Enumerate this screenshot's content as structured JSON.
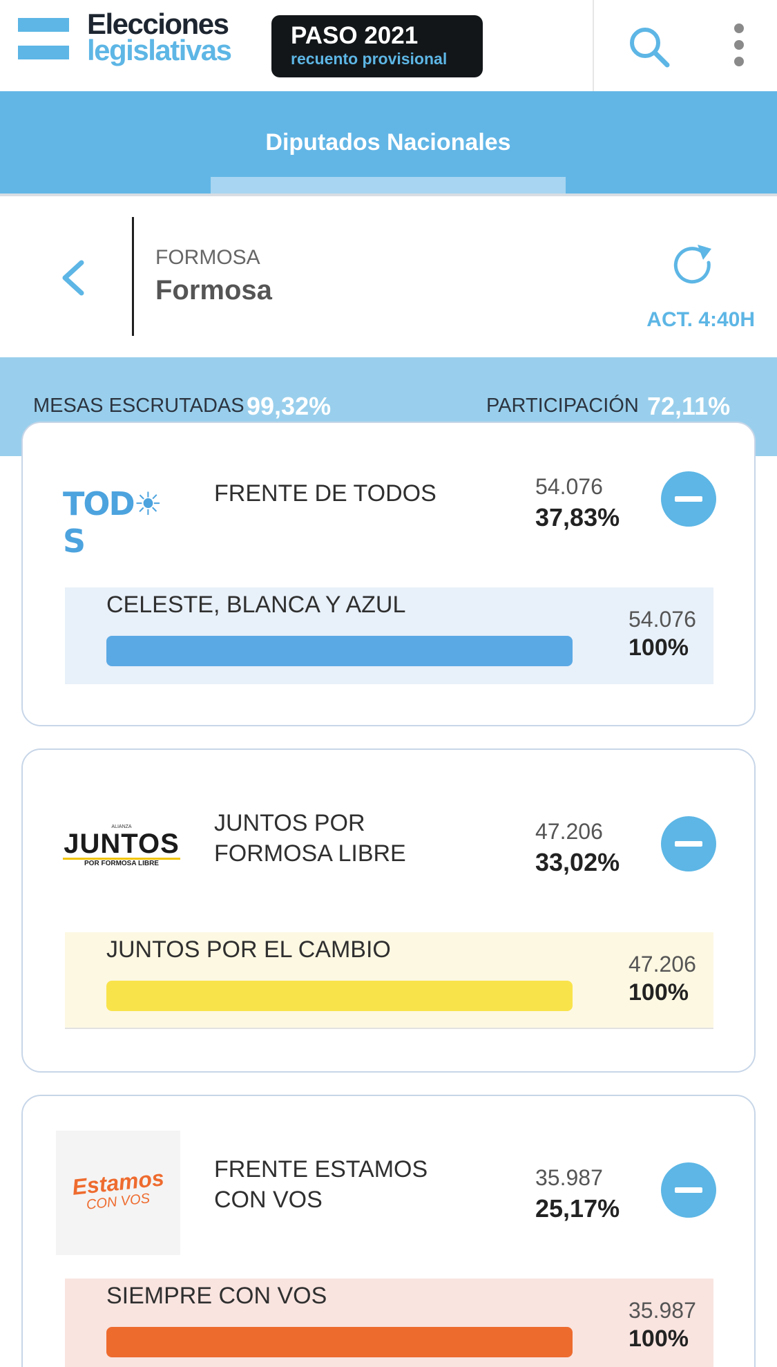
{
  "header": {
    "brand_line1": "Elecciones",
    "brand_line2": "legislativas",
    "badge_title": "PASO 2021",
    "badge_subtitle": "recuento provisional",
    "search_icon": "search-icon",
    "menu_icon": "kebab-menu-icon"
  },
  "tabs": [
    {
      "label": "Diputados Nacionales",
      "active": true
    }
  ],
  "location": {
    "parent": "FORMOSA",
    "name": "Formosa",
    "updated": "ACT. 4:40H"
  },
  "stats": {
    "mesas_label": "MESAS ESCRUTADAS",
    "mesas_value": "99,32%",
    "participacion_label": "PARTICIPACIÓN",
    "participacion_value": "72,11%"
  },
  "colors": {
    "accent": "#5db6e5",
    "header_band": "#62b6e6",
    "stats_band": "#99cfec",
    "bar_todos": "#5aa9e4",
    "bar_juntos": "#f9e34a",
    "bar_estamos": "#ee6b2e"
  },
  "parties": [
    {
      "logo_text": "TOD☀S",
      "name_line1": "FRENTE DE TODOS",
      "name_line2": "",
      "votes": "54.076",
      "percent": "37,83%",
      "lists": [
        {
          "name": "CELESTE, BLANCA Y AZUL",
          "votes": "54.076",
          "percent": "100%",
          "share": 1.0
        }
      ]
    },
    {
      "logo_text_small": "ALIANZA",
      "logo_text": "JUNTOS",
      "logo_text_sub": "POR FORMOSA LIBRE",
      "name_line1": "JUNTOS POR",
      "name_line2": "FORMOSA LIBRE",
      "votes": "47.206",
      "percent": "33,02%",
      "lists": [
        {
          "name": "JUNTOS POR EL CAMBIO",
          "votes": "47.206",
          "percent": "100%",
          "share": 1.0
        }
      ]
    },
    {
      "logo_text": "Estamos",
      "logo_text_sub": "CON VOS",
      "name_line1": "FRENTE ESTAMOS",
      "name_line2": "CON VOS",
      "votes": "35.987",
      "percent": "25,17%",
      "lists": [
        {
          "name": "SIEMPRE CON VOS",
          "votes": "35.987",
          "percent": "100%",
          "share": 1.0
        }
      ]
    }
  ]
}
